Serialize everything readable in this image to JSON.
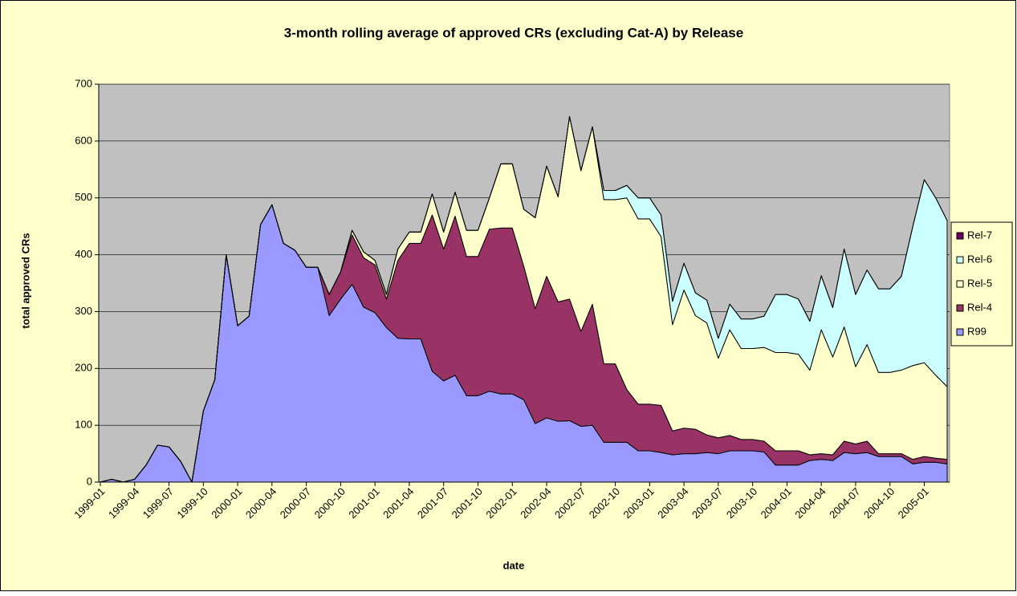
{
  "chart_data": {
    "type": "stacked_area",
    "title": "3-month rolling average of approved CRs (excluding Cat-A) by Release",
    "xlabel": "date",
    "ylabel": "total approved CRs",
    "categories": [
      "1999-01",
      null,
      null,
      "1999-04",
      null,
      null,
      "1999-07",
      null,
      null,
      "1999-10",
      null,
      null,
      "2000-01",
      null,
      null,
      "2000-04",
      null,
      null,
      "2000-07",
      null,
      null,
      "2000-10",
      null,
      null,
      "2001-01",
      null,
      null,
      "2001-04",
      null,
      null,
      "2001-07",
      null,
      null,
      "2001-10",
      null,
      null,
      "2002-01",
      null,
      null,
      "2002-04",
      null,
      null,
      "2002-07",
      null,
      null,
      "2002-10",
      null,
      null,
      "2003-01",
      null,
      null,
      "2003-04",
      null,
      null,
      "2003-07",
      null,
      null,
      "2003-10",
      null,
      null,
      "2004-01",
      null,
      null,
      "2004-04",
      null,
      null,
      "2004-07",
      null,
      null,
      "2004-10",
      null,
      null,
      "2005-01",
      null,
      null
    ],
    "series": [
      {
        "name": "R99",
        "color": "#9999ff",
        "values": [
          0,
          5,
          0,
          5,
          30,
          65,
          62,
          37,
          0,
          125,
          180,
          400,
          275,
          292,
          453,
          488,
          420,
          408,
          378,
          378,
          293,
          322,
          348,
          308,
          298,
          272,
          253,
          252,
          252,
          195,
          178,
          188,
          152,
          152,
          160,
          155,
          155,
          145,
          103,
          113,
          107,
          108,
          98,
          100,
          70,
          70,
          70,
          55,
          55,
          52,
          48,
          50,
          50,
          52,
          50,
          55,
          55,
          55,
          53,
          30,
          30,
          30,
          38,
          40,
          38,
          52,
          50,
          52,
          45,
          45,
          45,
          32,
          35,
          35,
          32
        ]
      },
      {
        "name": "Rel-4",
        "color": "#993366",
        "values": [
          0,
          0,
          0,
          0,
          0,
          0,
          0,
          0,
          0,
          0,
          0,
          0,
          0,
          0,
          0,
          0,
          0,
          0,
          0,
          0,
          37,
          48,
          87,
          87,
          84,
          50,
          137,
          168,
          168,
          275,
          232,
          280,
          245,
          245,
          285,
          292,
          292,
          235,
          202,
          249,
          210,
          214,
          167,
          213,
          138,
          138,
          93,
          82,
          82,
          83,
          42,
          45,
          43,
          31,
          28,
          27,
          20,
          20,
          19,
          25,
          25,
          25,
          10,
          10,
          10,
          20,
          17,
          20,
          5,
          5,
          5,
          8,
          10,
          7,
          8
        ]
      },
      {
        "name": "Rel-5",
        "color": "#ffffcc",
        "values": [
          0,
          0,
          0,
          0,
          0,
          0,
          0,
          0,
          0,
          0,
          0,
          0,
          0,
          0,
          0,
          0,
          0,
          0,
          0,
          0,
          0,
          0,
          8,
          10,
          8,
          8,
          20,
          20,
          20,
          37,
          30,
          42,
          46,
          46,
          55,
          113,
          113,
          100,
          160,
          194,
          185,
          321,
          283,
          312,
          289,
          289,
          337,
          326,
          326,
          297,
          187,
          243,
          200,
          197,
          140,
          186,
          160,
          160,
          165,
          173,
          173,
          170,
          149,
          218,
          172,
          201,
          136,
          170,
          143,
          143,
          147,
          165,
          165,
          146,
          128
        ]
      },
      {
        "name": "Rel-6",
        "color": "#ccffff",
        "values": [
          0,
          0,
          0,
          0,
          0,
          0,
          0,
          0,
          0,
          0,
          0,
          0,
          0,
          0,
          0,
          0,
          0,
          0,
          0,
          0,
          0,
          0,
          0,
          0,
          0,
          0,
          0,
          0,
          0,
          0,
          0,
          0,
          0,
          0,
          0,
          0,
          0,
          0,
          0,
          0,
          0,
          0,
          0,
          0,
          16,
          16,
          22,
          37,
          37,
          38,
          41,
          47,
          40,
          40,
          35,
          45,
          52,
          52,
          55,
          102,
          102,
          97,
          86,
          95,
          87,
          137,
          127,
          131,
          147,
          147,
          165,
          245,
          322,
          312,
          292
        ]
      },
      {
        "name": "Rel-7",
        "color": "#660066",
        "values": [
          0,
          0,
          0,
          0,
          0,
          0,
          0,
          0,
          0,
          0,
          0,
          0,
          0,
          0,
          0,
          0,
          0,
          0,
          0,
          0,
          0,
          0,
          0,
          0,
          0,
          0,
          0,
          0,
          0,
          0,
          0,
          0,
          0,
          0,
          0,
          0,
          0,
          0,
          0,
          0,
          0,
          0,
          0,
          0,
          0,
          0,
          0,
          0,
          0,
          0,
          0,
          0,
          0,
          0,
          0,
          0,
          0,
          0,
          0,
          0,
          0,
          0,
          0,
          0,
          0,
          0,
          0,
          0,
          0,
          0,
          0,
          0,
          0,
          0,
          0
        ]
      }
    ],
    "ylim": [
      0,
      700
    ],
    "yticks": [
      0,
      100,
      200,
      300,
      400,
      500,
      600,
      700
    ],
    "grid": true,
    "legend": "right"
  }
}
